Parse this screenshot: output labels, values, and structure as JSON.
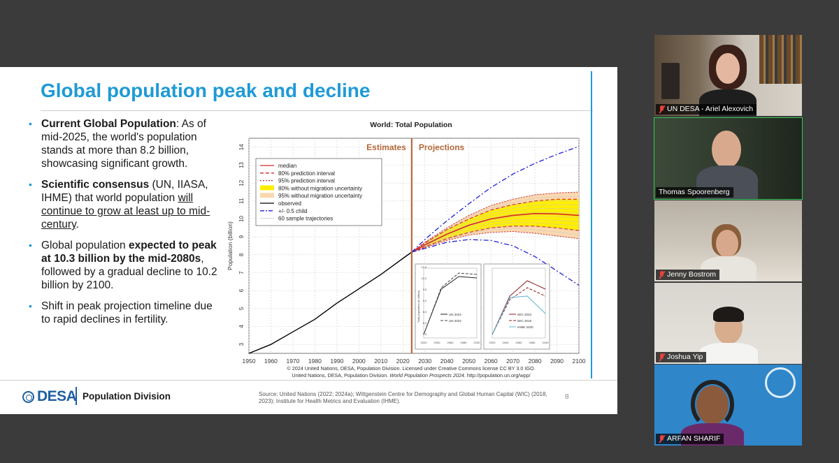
{
  "slide": {
    "title": "Global population peak and decline",
    "bullets": [
      {
        "bold": "Current Global Population",
        "text": ": As of mid-2025, the world's population stands at more than 8.2 billion, showcasing significant growth."
      },
      {
        "bold": "Scientific consensus",
        "text": " (UN, IIASA, IHME) that world population ",
        "underline": "will continue to grow at least up to mid-century",
        "tail": "."
      },
      {
        "text_pre": "Global population ",
        "bold": "expected to peak at 10.3 billion by the mid-2080s",
        "text": ", followed by a gradual decline to 10.2 billion by 2100."
      },
      {
        "text": "Shift in peak projection timeline due to rapid declines in fertility."
      }
    ],
    "footer": {
      "logo_text": "DESA",
      "division": "Population Division",
      "source": "Source: United Nations (2022; 2024a); Wittgenstein Centre for Demography and Global Human Capital (WIC) (2018, 2023); Institute for Health Metrics and Evaluation (IHME).",
      "page": "8"
    }
  },
  "chart_data": {
    "type": "line",
    "title": "World: Total Population",
    "ylabel": "Population (billion)",
    "xlabel": "",
    "xlim": [
      1950,
      2100
    ],
    "ylim": [
      2.5,
      14.5
    ],
    "x_ticks": [
      1950,
      1960,
      1970,
      1980,
      1990,
      2000,
      2010,
      2020,
      2030,
      2040,
      2050,
      2060,
      2070,
      2080,
      2090,
      2100
    ],
    "y_ticks": [
      3,
      4,
      5,
      6,
      7,
      8,
      9,
      10,
      11,
      12,
      13,
      14
    ],
    "divider_year": 2024,
    "region_labels": {
      "left": "Estimates",
      "right": "Projections"
    },
    "legend": [
      {
        "label": "median",
        "color": "#d62728",
        "style": "solid"
      },
      {
        "label": "80% prediction interval",
        "color": "#d62728",
        "style": "dashed"
      },
      {
        "label": "95% prediction interval",
        "color": "#d62728",
        "style": "dotted"
      },
      {
        "label": "80% without migration uncertainty",
        "color": "#ffee00",
        "style": "band"
      },
      {
        "label": "95% without migration uncertainty",
        "color": "#fbd8b0",
        "style": "band"
      },
      {
        "label": "observed",
        "color": "#000000",
        "style": "solid"
      },
      {
        "label": "+/- 0.5 child",
        "color": "#1f1fd6",
        "style": "dashdot"
      },
      {
        "label": "60 sample trajectories",
        "color": "#bbbbbb",
        "style": "thin"
      }
    ],
    "series": [
      {
        "name": "observed",
        "x": [
          1950,
          1960,
          1970,
          1980,
          1990,
          2000,
          2010,
          2020,
          2024
        ],
        "y": [
          2.5,
          3.0,
          3.7,
          4.4,
          5.3,
          6.1,
          6.9,
          7.8,
          8.15
        ]
      },
      {
        "name": "median",
        "x": [
          2024,
          2030,
          2040,
          2050,
          2060,
          2070,
          2080,
          2090,
          2100
        ],
        "y": [
          8.15,
          8.55,
          9.15,
          9.65,
          10.0,
          10.2,
          10.3,
          10.28,
          10.2
        ]
      },
      {
        "name": "80% prediction interval",
        "x_upper": [
          2024,
          2030,
          2040,
          2050,
          2060,
          2070,
          2080,
          2090,
          2100
        ],
        "upper": [
          8.15,
          8.65,
          9.4,
          10.0,
          10.5,
          10.8,
          11.0,
          11.1,
          11.1
        ],
        "lower": [
          8.15,
          8.45,
          8.9,
          9.25,
          9.5,
          9.6,
          9.6,
          9.5,
          9.35
        ]
      },
      {
        "name": "95% prediction interval",
        "upper": [
          8.15,
          8.7,
          9.5,
          10.2,
          10.75,
          11.1,
          11.35,
          11.45,
          11.5
        ],
        "lower": [
          8.15,
          8.4,
          8.8,
          9.1,
          9.25,
          9.3,
          9.2,
          9.05,
          8.9
        ]
      },
      {
        "name": "+/- 0.5 child",
        "upper": [
          8.15,
          8.85,
          9.9,
          10.85,
          11.75,
          12.5,
          13.1,
          13.6,
          14.05
        ],
        "lower": [
          8.15,
          8.35,
          8.7,
          8.85,
          8.8,
          8.5,
          7.9,
          7.1,
          6.3
        ]
      }
    ],
    "inset": {
      "left": {
        "legend": [
          "UN 2024",
          "UN 2022"
        ],
        "ylabel": "Total population (in billion)",
        "x_ticks": [
          "2020",
          "2040",
          "2060",
          "2080",
          "2100"
        ],
        "y_ticks": [
          "7.5",
          "8.0",
          "8.5",
          "9.0",
          "9.5",
          "10.0",
          "10.5"
        ]
      },
      "right": {
        "legend": [
          "WIC 2023",
          "WIC 2018",
          "IHME 2020"
        ],
        "x_ticks": [
          "2020",
          "2040",
          "2060",
          "2080",
          "2100"
        ]
      }
    },
    "credit_line1": "© 2024 United Nations, DESA, Population Division. Licensed under Creative Commons license CC BY 3.0 IGO.",
    "credit_line2_pre": "United Nations, DESA, Population Division. ",
    "credit_line2_ital": "World Population Prospects 2024",
    "credit_line2_post": ". http://population.un.org/wpp/"
  },
  "participants": [
    {
      "name": "UN DESA - Ariel Alexovich",
      "muted": true,
      "active": false
    },
    {
      "name": "Thomas Spoorenberg",
      "muted": false,
      "active": true
    },
    {
      "name": "Jenny Bostrom",
      "muted": true,
      "active": false
    },
    {
      "name": "Joshua Yip",
      "muted": true,
      "active": false
    },
    {
      "name": "ARFAN SHARIF",
      "muted": true,
      "active": false
    }
  ],
  "colors": {
    "accent": "#1f9ad6",
    "desa_blue": "#1f5fa0",
    "active_border": "#34c759",
    "muted_red": "#e8413c"
  }
}
